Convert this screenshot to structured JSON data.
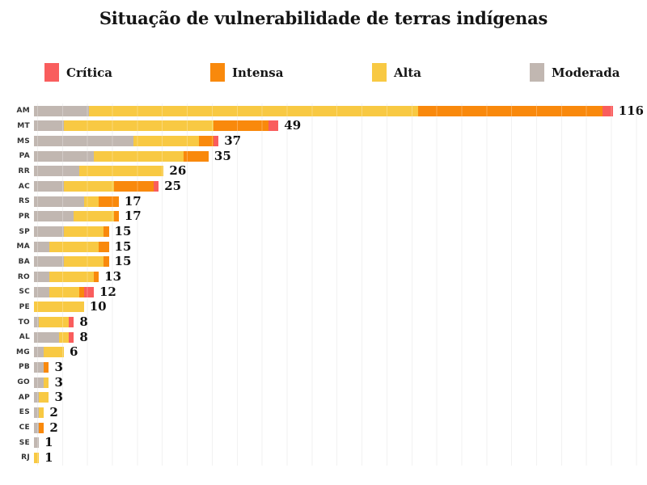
{
  "title": "Situação de vulnerabilidade de terras indígenas",
  "legend": [
    {
      "label": "Crítica",
      "color": "#F95D5D"
    },
    {
      "label": "Intensa",
      "color": "#F9890C"
    },
    {
      "label": "Alta",
      "color": "#F8C943"
    },
    {
      "label": "Moderada",
      "color": "#C1B7B1"
    }
  ],
  "chart_data": {
    "type": "bar",
    "orientation": "horizontal",
    "stacked": true,
    "title": "Situação de vulnerabilidade de terras indígenas",
    "categories": [
      "AM",
      "MT",
      "MS",
      "PA",
      "RR",
      "AC",
      "RS",
      "PR",
      "SP",
      "MA",
      "BA",
      "RO",
      "SC",
      "PE",
      "TO",
      "AL",
      "MG",
      "PB",
      "GO",
      "AP",
      "ES",
      "CE",
      "SE",
      "RJ"
    ],
    "totals": [
      116,
      49,
      37,
      35,
      26,
      25,
      17,
      17,
      15,
      15,
      15,
      13,
      12,
      10,
      8,
      8,
      6,
      3,
      3,
      3,
      2,
      2,
      1,
      1
    ],
    "segment_order_left_to_right": [
      "Moderada",
      "Alta",
      "Intensa",
      "Crítica"
    ],
    "series": [
      {
        "name": "Moderada",
        "color": "#C1B7B1",
        "values": [
          11,
          6,
          20,
          12,
          9,
          6,
          10,
          8,
          6,
          3,
          6,
          3,
          3,
          0,
          1,
          5,
          2,
          2,
          2,
          1,
          1,
          1,
          1,
          0
        ]
      },
      {
        "name": "Alta",
        "color": "#F8C943",
        "values": [
          66,
          30,
          13,
          18,
          17,
          10,
          3,
          8,
          8,
          10,
          8,
          9,
          6,
          10,
          6,
          2,
          4,
          0,
          1,
          2,
          1,
          0,
          0,
          1
        ]
      },
      {
        "name": "Intensa",
        "color": "#F9890C",
        "values": [
          37,
          11,
          3,
          5,
          0,
          8,
          4,
          1,
          1,
          2,
          1,
          1,
          1,
          0,
          0,
          0,
          0,
          1,
          0,
          0,
          0,
          1,
          0,
          0
        ]
      },
      {
        "name": "Crítica",
        "color": "#F95D5D",
        "values": [
          2,
          2,
          1,
          0,
          0,
          1,
          0,
          0,
          0,
          0,
          0,
          0,
          2,
          0,
          1,
          1,
          0,
          0,
          0,
          0,
          0,
          0,
          0,
          0
        ]
      }
    ],
    "xlim": [
      0,
      120
    ],
    "gridline_interval": 5,
    "grid": true,
    "legend_position": "top",
    "value_labels": "end-of-bar"
  }
}
